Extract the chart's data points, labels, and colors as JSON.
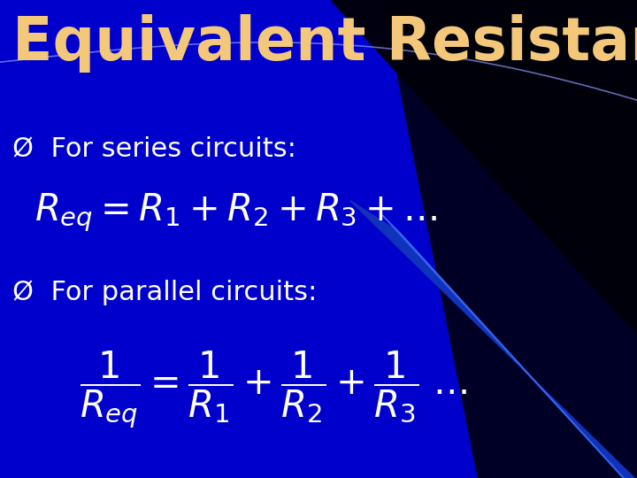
{
  "title": "Equivalent Resistance",
  "title_color": "#F4C87A",
  "title_fontsize": 48,
  "bg_color": "#0000CC",
  "bullet_color": "#FFFFFF",
  "formula_color": "#FFFFFF",
  "bullet_marker": "Ø",
  "series_label": "For series circuits:",
  "parallel_label": "For parallel circuits:",
  "label_fontsize": 22,
  "formula_fontsize": 30,
  "figsize": [
    7.2,
    5.4
  ],
  "dpi": 100,
  "dark_right_color": "#00004A",
  "swoosh_color": "#1133BB",
  "swoosh_light_color": "#3366EE",
  "arc_line_color": "#8899FF"
}
